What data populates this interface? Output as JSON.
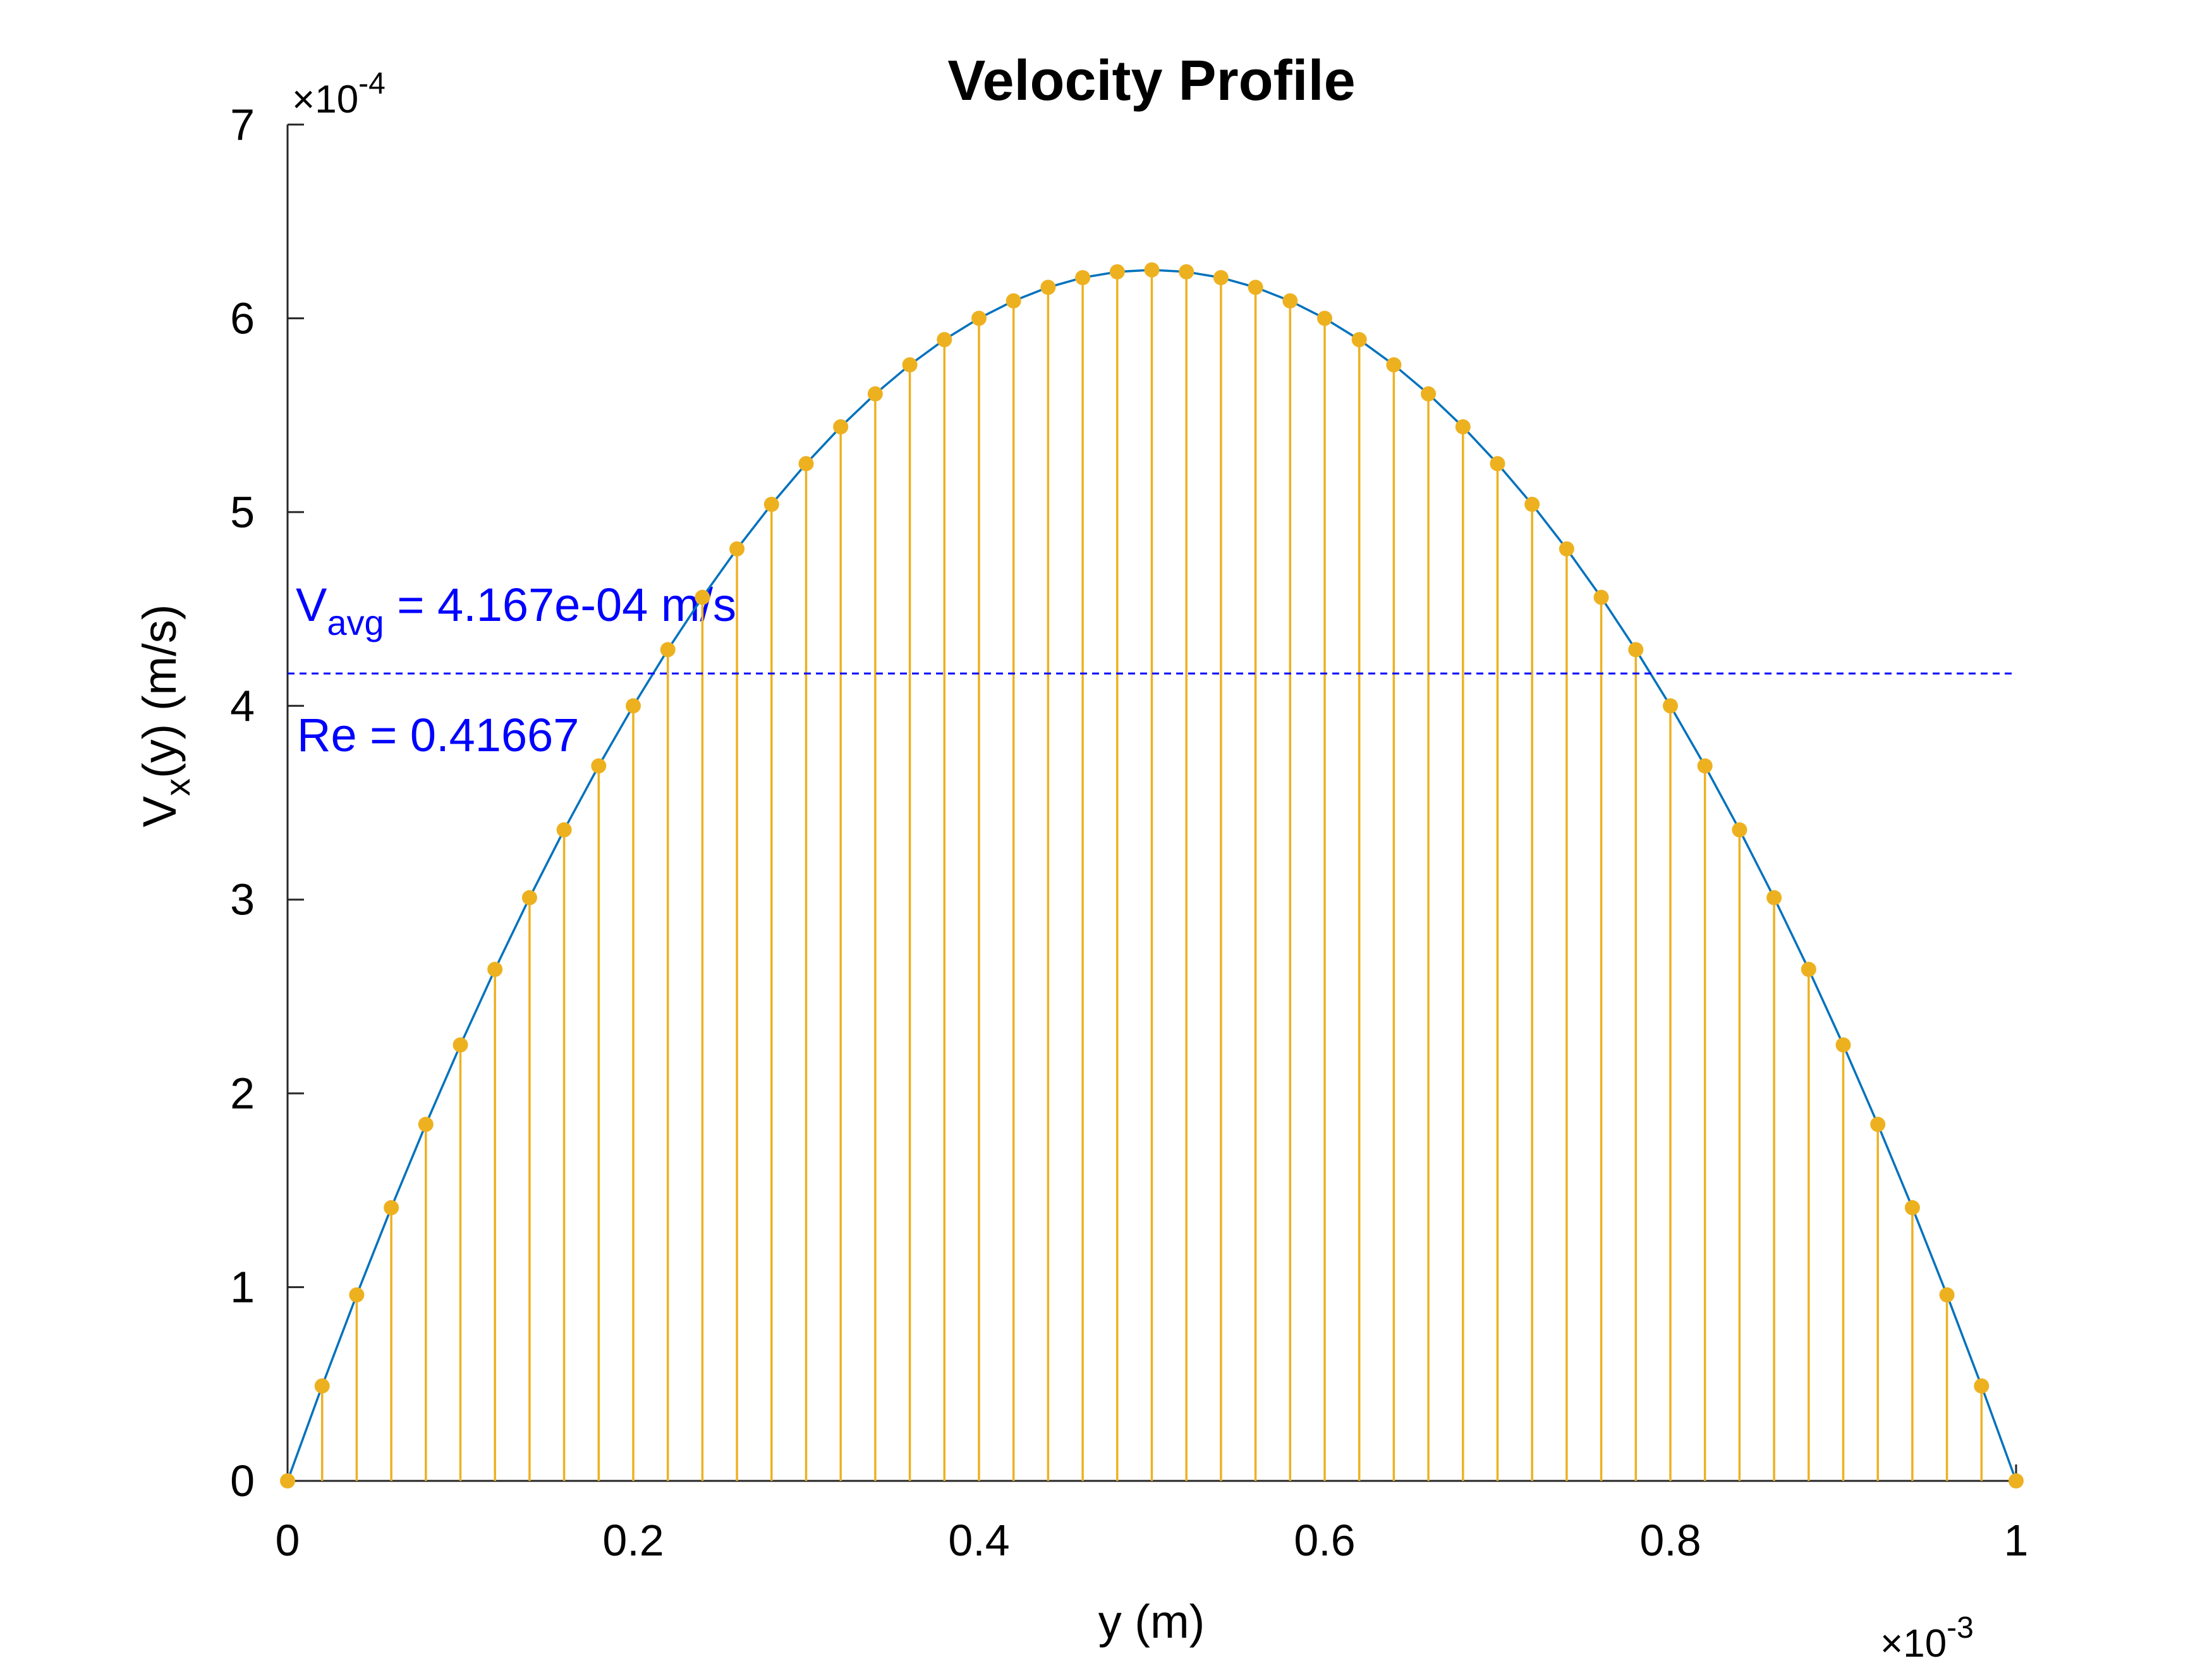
{
  "chart_data": {
    "type": "line",
    "title": "Velocity Profile",
    "xlabel": "y (m)",
    "ylabel": {
      "base": "V",
      "sub": "x",
      "rest": "(y) (m/s)"
    },
    "x_multiplier": {
      "times": "×10",
      "exp": "-3"
    },
    "y_multiplier": {
      "times": "×10",
      "exp": "-4"
    },
    "xlim": [
      0,
      1
    ],
    "ylim": [
      0,
      7
    ],
    "x_ticks": [
      0,
      0.2,
      0.4,
      0.6,
      0.8,
      1
    ],
    "x_tick_labels": [
      "0",
      "0.2",
      "0.4",
      "0.6",
      "0.8",
      "1"
    ],
    "y_ticks": [
      0,
      1,
      2,
      3,
      4,
      5,
      6,
      7
    ],
    "y_tick_labels": [
      "0",
      "1",
      "2",
      "3",
      "4",
      "5",
      "6",
      "7"
    ],
    "grid": false,
    "series": [
      {
        "kind": "line",
        "color": "#0072BD",
        "x": [
          0,
          0.02,
          0.04,
          0.06,
          0.08,
          0.1,
          0.12,
          0.14,
          0.16,
          0.18,
          0.2,
          0.22,
          0.24,
          0.26,
          0.28,
          0.3,
          0.32,
          0.34,
          0.36,
          0.38,
          0.4,
          0.42,
          0.44,
          0.46,
          0.48,
          0.5,
          0.52,
          0.54,
          0.56,
          0.58,
          0.6,
          0.62,
          0.64,
          0.66,
          0.68,
          0.7,
          0.72,
          0.74,
          0.76,
          0.78,
          0.8,
          0.82,
          0.84,
          0.86,
          0.88,
          0.9,
          0.92,
          0.94,
          0.96,
          0.98,
          1
        ],
        "y": [
          0,
          0.49,
          0.96,
          1.41,
          1.84,
          2.25,
          2.64,
          3.01,
          3.36,
          3.69,
          4.0,
          4.29,
          4.56,
          4.81,
          5.04,
          5.25,
          5.44,
          5.61,
          5.76,
          5.89,
          6.0,
          6.09,
          6.16,
          6.21,
          6.24,
          6.25,
          6.24,
          6.21,
          6.16,
          6.09,
          6.0,
          5.89,
          5.76,
          5.61,
          5.44,
          5.25,
          5.04,
          4.81,
          4.56,
          4.29,
          4.0,
          3.69,
          3.36,
          3.01,
          2.64,
          2.25,
          1.84,
          1.41,
          0.96,
          0.49,
          0
        ]
      },
      {
        "kind": "stem",
        "color": "#EDB120",
        "x": [
          0,
          0.02,
          0.04,
          0.06,
          0.08,
          0.1,
          0.12,
          0.14,
          0.16,
          0.18,
          0.2,
          0.22,
          0.24,
          0.26,
          0.28,
          0.3,
          0.32,
          0.34,
          0.36,
          0.38,
          0.4,
          0.42,
          0.44,
          0.46,
          0.48,
          0.5,
          0.52,
          0.54,
          0.56,
          0.58,
          0.6,
          0.62,
          0.64,
          0.66,
          0.68,
          0.7,
          0.72,
          0.74,
          0.76,
          0.78,
          0.8,
          0.82,
          0.84,
          0.86,
          0.88,
          0.9,
          0.92,
          0.94,
          0.96,
          0.98,
          1
        ],
        "y": [
          0,
          0.49,
          0.96,
          1.41,
          1.84,
          2.25,
          2.64,
          3.01,
          3.36,
          3.69,
          4.0,
          4.29,
          4.56,
          4.81,
          5.04,
          5.25,
          5.44,
          5.61,
          5.76,
          5.89,
          6.0,
          6.09,
          6.16,
          6.21,
          6.24,
          6.25,
          6.24,
          6.21,
          6.16,
          6.09,
          6.0,
          5.89,
          5.76,
          5.61,
          5.44,
          5.25,
          5.04,
          4.81,
          4.56,
          4.29,
          4.0,
          3.69,
          3.36,
          3.01,
          2.64,
          2.25,
          1.84,
          1.41,
          0.96,
          0.49,
          0
        ]
      }
    ],
    "reference_line": {
      "y": 4.167,
      "color": "#0000FF",
      "style": "dashed"
    },
    "annotations": {
      "color": "#0000FF",
      "vavg": {
        "base": "V",
        "sub": "avg",
        "rest": " = 4.167e-04 m/s"
      },
      "re": "Re = 0.41667"
    }
  }
}
